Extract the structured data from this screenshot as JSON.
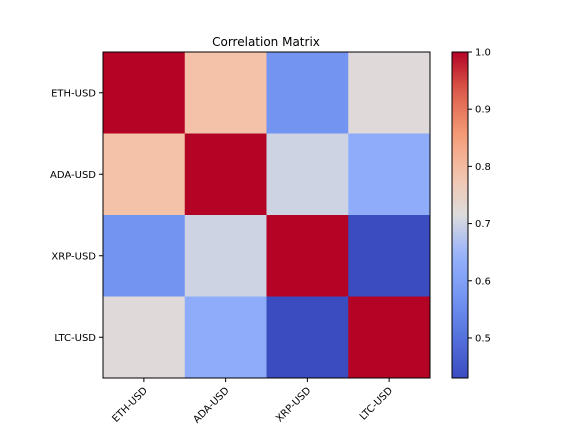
{
  "chart_data": {
    "type": "heatmap",
    "title": "Correlation Matrix",
    "x_labels": [
      "ETH-USD",
      "ADA-USD",
      "XRP-USD",
      "LTC-USD"
    ],
    "y_labels": [
      "ETH-USD",
      "ADA-USD",
      "XRP-USD",
      "LTC-USD"
    ],
    "values": [
      [
        1.0,
        0.79,
        0.57,
        0.72
      ],
      [
        0.79,
        1.0,
        0.7,
        0.63
      ],
      [
        0.57,
        0.7,
        1.0,
        0.43
      ],
      [
        0.72,
        0.63,
        0.43,
        1.0
      ]
    ],
    "colormap": "coolwarm",
    "colorbar": {
      "min": 0.43,
      "max": 1.0,
      "ticks": [
        0.5,
        0.6,
        0.7,
        0.8,
        0.9,
        1.0
      ],
      "tick_labels": [
        "0.5",
        "0.6",
        "0.7",
        "0.8",
        "0.9",
        "1.0"
      ]
    }
  }
}
